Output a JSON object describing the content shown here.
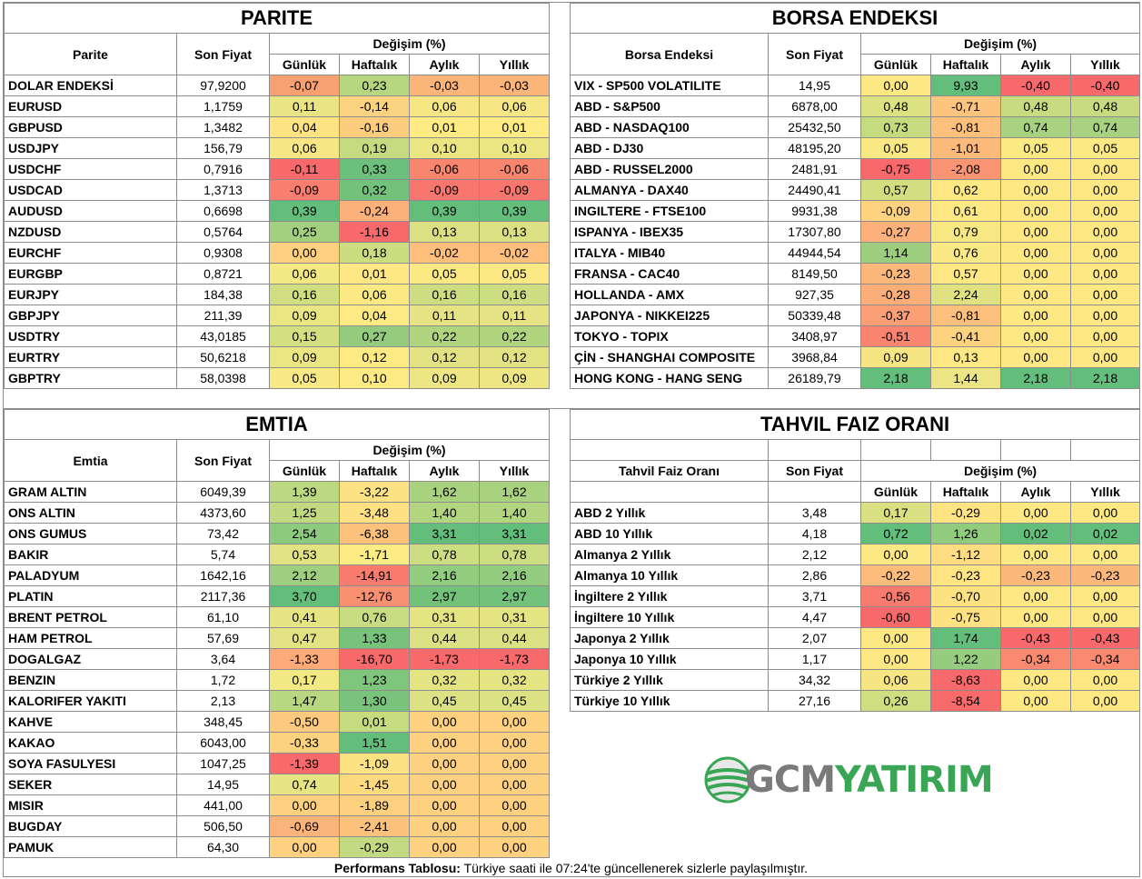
{
  "parite": {
    "title": "PARITE",
    "h_name": "Parite",
    "h_price": "Son Fiyat",
    "h_change": "Değişim (%)",
    "h_cols": [
      "Günlük",
      "Haftalık",
      "Aylık",
      "Yıllık"
    ],
    "rows": [
      {
        "name": "DOLAR ENDEKSİ",
        "price": "97,9200",
        "v": [
          "-0,07",
          "0,23",
          "-0,03",
          "-0,03"
        ],
        "c": [
          "#f9a070",
          "#b6d77f",
          "#fcb578",
          "#fcb578"
        ]
      },
      {
        "name": "EURUSD",
        "price": "1,1759",
        "v": [
          "0,11",
          "-0,14",
          "0,06",
          "0,06"
        ],
        "c": [
          "#e9e585",
          "#fcd381",
          "#f6e784",
          "#f6e784"
        ]
      },
      {
        "name": "GBPUSD",
        "price": "1,3482",
        "v": [
          "0,04",
          "-0,16",
          "0,01",
          "0,01"
        ],
        "c": [
          "#fee382",
          "#fccd7f",
          "#feeb84",
          "#feeb84"
        ]
      },
      {
        "name": "USDJPY",
        "price": "156,79",
        "v": [
          "0,06",
          "0,19",
          "0,10",
          "0,10"
        ],
        "c": [
          "#f6e784",
          "#c4db80",
          "#ebe582",
          "#ebe582"
        ]
      },
      {
        "name": "USDCHF",
        "price": "0,7916",
        "v": [
          "-0,11",
          "0,33",
          "-0,06",
          "-0,06"
        ],
        "c": [
          "#f8696b",
          "#6dc07b",
          "#f8856e",
          "#f8856e"
        ]
      },
      {
        "name": "USDCAD",
        "price": "1,3713",
        "v": [
          "-0,09",
          "0,32",
          "-0,09",
          "-0,09"
        ],
        "c": [
          "#f97e6f",
          "#72c27b",
          "#f8766d",
          "#f8766d"
        ]
      },
      {
        "name": "AUDUSD",
        "price": "0,6698",
        "v": [
          "0,39",
          "-0,24",
          "0,39",
          "0,39"
        ],
        "c": [
          "#63be7b",
          "#fbb179",
          "#63be7b",
          "#63be7b"
        ]
      },
      {
        "name": "NZDUSD",
        "price": "0,5764",
        "v": [
          "0,25",
          "-1,16",
          "0,13",
          "0,13"
        ],
        "c": [
          "#a2d07f",
          "#f8696b",
          "#dbe083",
          "#dbe083"
        ]
      },
      {
        "name": "EURCHF",
        "price": "0,9308",
        "v": [
          "0,00",
          "0,18",
          "-0,02",
          "-0,02"
        ],
        "c": [
          "#fdd07f",
          "#cbdc81",
          "#fdbf7b",
          "#fdbf7b"
        ]
      },
      {
        "name": "EURGBP",
        "price": "0,8721",
        "v": [
          "0,06",
          "0,01",
          "0,05",
          "0,05"
        ],
        "c": [
          "#f2e884",
          "#ffe784",
          "#fde984",
          "#fde984"
        ]
      },
      {
        "name": "EURJPY",
        "price": "184,38",
        "v": [
          "0,16",
          "0,06",
          "0,16",
          "0,16"
        ],
        "c": [
          "#d1df82",
          "#fbe983",
          "#cddd82",
          "#cddd82"
        ]
      },
      {
        "name": "GBPJPY",
        "price": "211,39",
        "v": [
          "0,09",
          "0,04",
          "0,11",
          "0,11"
        ],
        "c": [
          "#ebe684",
          "#feea84",
          "#e5e383",
          "#e5e383"
        ]
      },
      {
        "name": "USDTRY",
        "price": "43,0185",
        "v": [
          "0,15",
          "0,27",
          "0,22",
          "0,22"
        ],
        "c": [
          "#d4df82",
          "#94cb7e",
          "#b1d47f",
          "#b1d47f"
        ]
      },
      {
        "name": "EURTRY",
        "price": "50,6218",
        "v": [
          "0,09",
          "0,12",
          "0,12",
          "0,12"
        ],
        "c": [
          "#ebe684",
          "#fdea83",
          "#e2e283",
          "#e2e283"
        ]
      },
      {
        "name": "GBPTRY",
        "price": "58,0398",
        "v": [
          "0,05",
          "0,10",
          "0,09",
          "0,09"
        ],
        "c": [
          "#f8e984",
          "#fdea83",
          "#eee683",
          "#eee683"
        ]
      }
    ]
  },
  "borsa": {
    "title": "BORSA ENDEKSI",
    "h_name": "Borsa Endeksi",
    "h_price": "Son Fiyat",
    "h_change": "Değişim (%)",
    "h_cols": [
      "Günlük",
      "Haftalık",
      "Aylık",
      "Yıllık"
    ],
    "rows": [
      {
        "name": "VIX  - SP500 VOLATILITE",
        "price": "14,95",
        "v": [
          "0,00",
          "9,93",
          "-0,40",
          "-0,40"
        ],
        "c": [
          "#fde883",
          "#63be7b",
          "#f8696b",
          "#f8696b"
        ]
      },
      {
        "name": "ABD - S&P500",
        "price": "6878,00",
        "v": [
          "0,48",
          "-0,71",
          "0,48",
          "0,48"
        ],
        "c": [
          "#dce182",
          "#fdc47d",
          "#c9db80",
          "#c9db80"
        ]
      },
      {
        "name": "ABD - NASDAQ100",
        "price": "25432,50",
        "v": [
          "0,73",
          "-0,81",
          "0,74",
          "0,74"
        ],
        "c": [
          "#c4db80",
          "#fdc07c",
          "#a8d27f",
          "#a8d27f"
        ]
      },
      {
        "name": "ABD - DJ30",
        "price": "48195,20",
        "v": [
          "0,05",
          "-1,01",
          "0,05",
          "0,05"
        ],
        "c": [
          "#f9e883",
          "#fbb97a",
          "#fbe983",
          "#fbe983"
        ]
      },
      {
        "name": "ABD - RUSSEL2000",
        "price": "2481,91",
        "v": [
          "-0,75",
          "-2,08",
          "0,00",
          "0,00"
        ],
        "c": [
          "#f8696b",
          "#fa9573",
          "#fde883",
          "#fde883"
        ]
      },
      {
        "name": "ALMANYA - DAX40",
        "price": "24490,41",
        "v": [
          "0,57",
          "0,62",
          "0,00",
          "0,00"
        ],
        "c": [
          "#d3de81",
          "#fde883",
          "#fde883",
          "#fde883"
        ]
      },
      {
        "name": "INGILTERE - FTSE100",
        "price": "9931,38",
        "v": [
          "-0,09",
          "0,61",
          "0,00",
          "0,00"
        ],
        "c": [
          "#fdd37f",
          "#fde883",
          "#fde883",
          "#fde883"
        ]
      },
      {
        "name": "ISPANYA - IBEX35",
        "price": "17307,80",
        "v": [
          "-0,27",
          "0,79",
          "0,00",
          "0,00"
        ],
        "c": [
          "#fbb179",
          "#f8e883",
          "#fde883",
          "#fde883"
        ]
      },
      {
        "name": "ITALYA - MIB40",
        "price": "44944,54",
        "v": [
          "1,14",
          "0,76",
          "0,00",
          "0,00"
        ],
        "c": [
          "#9cce7e",
          "#f9e883",
          "#fde883",
          "#fde883"
        ]
      },
      {
        "name": "FRANSA - CAC40",
        "price": "8149,50",
        "v": [
          "-0,23",
          "0,57",
          "0,00",
          "0,00"
        ],
        "c": [
          "#fbb87a",
          "#fde883",
          "#fde883",
          "#fde883"
        ]
      },
      {
        "name": "HOLLANDA - AMX",
        "price": "927,35",
        "v": [
          "-0,28",
          "2,24",
          "0,00",
          "0,00"
        ],
        "c": [
          "#fbae78",
          "#e0e282",
          "#fde883",
          "#fde883"
        ]
      },
      {
        "name": "JAPONYA - NIKKEI225",
        "price": "50339,48",
        "v": [
          "-0,37",
          "-0,81",
          "0,00",
          "0,00"
        ],
        "c": [
          "#fa9e75",
          "#fdc07c",
          "#fde883",
          "#fde883"
        ]
      },
      {
        "name": "TOKYO - TOPIX",
        "price": "3408,97",
        "v": [
          "-0,51",
          "-0,41",
          "0,00",
          "0,00"
        ],
        "c": [
          "#f98570",
          "#fdd37f",
          "#fde883",
          "#fde883"
        ]
      },
      {
        "name": "ÇİN - SHANGHAI COMPOSITE",
        "price": "3968,84",
        "v": [
          "0,09",
          "0,13",
          "0,00",
          "0,00"
        ],
        "c": [
          "#f5e683",
          "#fde883",
          "#fde883",
          "#fde883"
        ]
      },
      {
        "name": "HONG KONG - HANG SENG",
        "price": "26189,79",
        "v": [
          "2,18",
          "1,44",
          "2,18",
          "2,18"
        ],
        "c": [
          "#63be7b",
          "#ede583",
          "#63be7b",
          "#63be7b"
        ]
      }
    ]
  },
  "emtia": {
    "title": "EMTIA",
    "h_name": "Emtia",
    "h_price": "Son Fiyat",
    "h_change": "Değişim (%)",
    "h_cols": [
      "Günlük",
      "Haftalık",
      "Aylık",
      "Yıllık"
    ],
    "rows": [
      {
        "name": "GRAM ALTIN",
        "price": "6049,39",
        "v": [
          "1,39",
          "-3,22",
          "1,62",
          "1,62"
        ],
        "c": [
          "#bcd881",
          "#fde283",
          "#a9d27f",
          "#a9d27f"
        ]
      },
      {
        "name": "ONS ALTIN",
        "price": "4373,60",
        "v": [
          "1,25",
          "-3,48",
          "1,40",
          "1,40"
        ],
        "c": [
          "#c1da81",
          "#fde183",
          "#b3d580",
          "#b3d580"
        ]
      },
      {
        "name": "ONS GUMUS",
        "price": "73,42",
        "v": [
          "2,54",
          "-6,38",
          "3,31",
          "3,31"
        ],
        "c": [
          "#8dca7e",
          "#fcc27c",
          "#63be7b",
          "#63be7b"
        ]
      },
      {
        "name": "BAKIR",
        "price": "5,74",
        "v": [
          "0,53",
          "-1,71",
          "0,78",
          "0,78"
        ],
        "c": [
          "#e1e383",
          "#fdeb84",
          "#cddd82",
          "#cddd82"
        ]
      },
      {
        "name": "PALADYUM",
        "price": "1642,16",
        "v": [
          "2,12",
          "-14,91",
          "2,16",
          "2,16"
        ],
        "c": [
          "#9ece7f",
          "#f87b6d",
          "#93cc7e",
          "#93cc7e"
        ]
      },
      {
        "name": "PLATIN",
        "price": "2117,36",
        "v": [
          "3,70",
          "-12,76",
          "2,97",
          "2,97"
        ],
        "c": [
          "#63be7b",
          "#f99070",
          "#72c27c",
          "#72c27c"
        ]
      },
      {
        "name": "BRENT PETROL",
        "price": "61,10",
        "v": [
          "0,41",
          "0,76",
          "0,31",
          "0,31"
        ],
        "c": [
          "#e6e483",
          "#c8dc81",
          "#e5e483",
          "#e5e483"
        ]
      },
      {
        "name": "HAM PETROL",
        "price": "57,69",
        "v": [
          "0,47",
          "1,33",
          "0,44",
          "0,44"
        ],
        "c": [
          "#e3e383",
          "#77c37c",
          "#dce183",
          "#dce183"
        ]
      },
      {
        "name": "DOGALGAZ",
        "price": "3,64",
        "v": [
          "-1,33",
          "-16,70",
          "-1,73",
          "-1,73"
        ],
        "c": [
          "#fcab78",
          "#f8696b",
          "#f8696b",
          "#f8696b"
        ]
      },
      {
        "name": "BENZIN",
        "price": "1,72",
        "v": [
          "0,17",
          "1,23",
          "0,32",
          "0,32"
        ],
        "c": [
          "#f2e884",
          "#80c57c",
          "#e5e483",
          "#e5e483"
        ]
      },
      {
        "name": "KALORIFER YAKITI",
        "price": "2,13",
        "v": [
          "1,47",
          "1,30",
          "0,45",
          "0,45"
        ],
        "c": [
          "#b8d780",
          "#79c37c",
          "#dce183",
          "#dce183"
        ]
      },
      {
        "name": "KAHVE",
        "price": "348,45",
        "v": [
          "-0,50",
          "0,01",
          "0,00",
          "0,00"
        ],
        "c": [
          "#fcca7e",
          "#c5db80",
          "#fdd17f",
          "#fdd17f"
        ]
      },
      {
        "name": "KAKAO",
        "price": "6043,00",
        "v": [
          "-0,33",
          "1,51",
          "0,00",
          "0,00"
        ],
        "c": [
          "#fcd27f",
          "#63be7b",
          "#fdd17f",
          "#fdd17f"
        ]
      },
      {
        "name": "SOYA FASULYESI",
        "price": "1047,25",
        "v": [
          "-1,39",
          "-1,09",
          "0,00",
          "0,00"
        ],
        "c": [
          "#f8696b",
          "#fde283",
          "#fdd17f",
          "#fdd17f"
        ]
      },
      {
        "name": "SEKER",
        "price": "14,95",
        "v": [
          "0,74",
          "-1,45",
          "0,00",
          "0,00"
        ],
        "c": [
          "#e6e483",
          "#fdd980",
          "#fdd17f",
          "#fdd17f"
        ]
      },
      {
        "name": "MISIR",
        "price": "441,00",
        "v": [
          "0,00",
          "-1,89",
          "0,00",
          "0,00"
        ],
        "c": [
          "#fdd17f",
          "#fdd07f",
          "#fdd17f",
          "#fdd17f"
        ]
      },
      {
        "name": "BUGDAY",
        "price": "506,50",
        "v": [
          "-0,69",
          "-2,41",
          "0,00",
          "0,00"
        ],
        "c": [
          "#fab479",
          "#fcc27c",
          "#fdd17f",
          "#fdd17f"
        ]
      },
      {
        "name": "PAMUK",
        "price": "64,30",
        "v": [
          "0,00",
          "-0,29",
          "0,00",
          "0,00"
        ],
        "c": [
          "#fdd17f",
          "#c2da81",
          "#fdd17f",
          "#fdd17f"
        ]
      }
    ]
  },
  "tahvil": {
    "title": "TAHVIL FAIZ ORANI",
    "h_name": "Tahvil Faiz Oranı",
    "h_price": "Son Fiyat",
    "h_change": "Değişim (%)",
    "h_cols": [
      "Günlük",
      "Haftalık",
      "Aylık",
      "Yıllık"
    ],
    "rows": [
      {
        "name": "ABD 2 Yıllık",
        "price": "3,48",
        "v": [
          "0,17",
          "-0,29",
          "0,00",
          "0,00"
        ],
        "c": [
          "#d9e082",
          "#fee382",
          "#fee883",
          "#fee883"
        ]
      },
      {
        "name": "ABD 10 Yıllık",
        "price": "4,18",
        "v": [
          "0,72",
          "1,26",
          "0,02",
          "0,02"
        ],
        "c": [
          "#63be7b",
          "#91cb7e",
          "#63be7b",
          "#63be7b"
        ]
      },
      {
        "name": "Almanya 2 Yıllık",
        "price": "2,12",
        "v": [
          "0,00",
          "-1,12",
          "0,00",
          "0,00"
        ],
        "c": [
          "#fee883",
          "#fedd82",
          "#fee883",
          "#fee883"
        ]
      },
      {
        "name": "Almanya 10 Yıllık",
        "price": "2,86",
        "v": [
          "-0,22",
          "-0,23",
          "-0,23",
          "-0,23"
        ],
        "c": [
          "#fcbc7b",
          "#fee482",
          "#fcb87a",
          "#fcb87a"
        ]
      },
      {
        "name": "İngiltere 2 Yıllık",
        "price": "3,71",
        "v": [
          "-0,56",
          "-0,70",
          "0,00",
          "0,00"
        ],
        "c": [
          "#f97a6e",
          "#fee282",
          "#fee883",
          "#fee883"
        ]
      },
      {
        "name": "İngiltere 10 Yıllık",
        "price": "4,47",
        "v": [
          "-0,60",
          "-0,75",
          "0,00",
          "0,00"
        ],
        "c": [
          "#f8696b",
          "#fee282",
          "#fee883",
          "#fee883"
        ]
      },
      {
        "name": "Japonya 2 Yıllık",
        "price": "2,07",
        "v": [
          "0,00",
          "1,74",
          "-0,43",
          "-0,43"
        ],
        "c": [
          "#fee883",
          "#63be7b",
          "#f8696b",
          "#f8696b"
        ]
      },
      {
        "name": "Japonya 10 Yıllık",
        "price": "1,17",
        "v": [
          "0,00",
          "1,22",
          "-0,34",
          "-0,34"
        ],
        "c": [
          "#fee883",
          "#95cc7e",
          "#f98a70",
          "#f98a70"
        ]
      },
      {
        "name": "Türkiye 2 Yıllık",
        "price": "34,32",
        "v": [
          "0,06",
          "-8,63",
          "0,00",
          "0,00"
        ],
        "c": [
          "#f5e683",
          "#f8696b",
          "#fee883",
          "#fee883"
        ]
      },
      {
        "name": "Türkiye 10 Yıllık",
        "price": "27,16",
        "v": [
          "0,26",
          "-8,54",
          "0,00",
          "0,00"
        ],
        "c": [
          "#d0de82",
          "#f86b6b",
          "#fee883",
          "#fee883"
        ]
      }
    ]
  },
  "logo": {
    "part1": "GCM",
    "part2": "YATIRIM",
    "gray": "#7a7a7a",
    "green": "#3aa655"
  },
  "footer": {
    "bold": "Performans Tablosu:",
    "text": " Türkiye saati ile 07:24'te güncellenerek sizlerle paylaşılmıştır."
  }
}
